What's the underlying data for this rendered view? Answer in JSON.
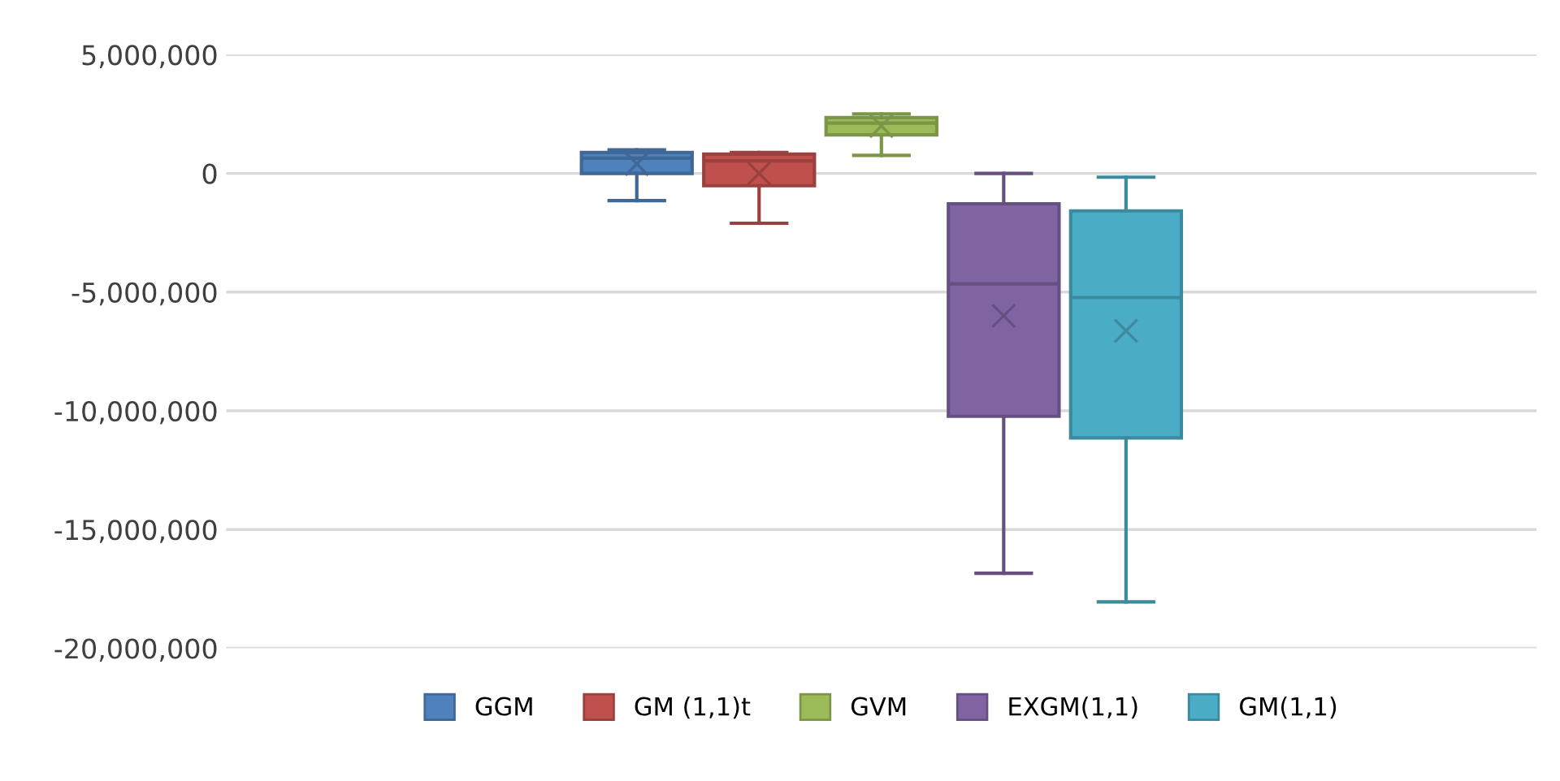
{
  "chart_data": {
    "type": "box",
    "categories": [
      null
    ],
    "series": [
      {
        "name": "GGM",
        "color": "#4f81bd",
        "boxes": [
          {
            "low": -1150000,
            "q1": 0,
            "median": 640000,
            "q3": 880000,
            "high": 990000,
            "mean": 400000
          }
        ]
      },
      {
        "name": "GM (1,1)t",
        "color": "#c0504d",
        "boxes": [
          {
            "low": -2100000,
            "q1": -520000,
            "median": 530000,
            "q3": 810000,
            "high": 880000,
            "mean": 0
          }
        ]
      },
      {
        "name": "GVM",
        "color": "#9bbb59",
        "boxes": [
          {
            "low": 760000,
            "q1": 1620000,
            "median": 2120000,
            "q3": 2350000,
            "high": 2500000,
            "mean": 2000000
          }
        ]
      },
      {
        "name": "EXGM(1,1)",
        "color": "#8064a2",
        "boxes": [
          {
            "low": -16840000,
            "q1": -10230000,
            "median": -4650000,
            "q3": -1280000,
            "high": 0,
            "mean": -6000000
          }
        ]
      },
      {
        "name": "GM(1,1)",
        "color": "#4bacc6",
        "boxes": [
          {
            "low": -18050000,
            "q1": -11140000,
            "median": -5230000,
            "q3": -1580000,
            "high": -160000,
            "mean": -6630000
          }
        ]
      }
    ],
    "ylim": [
      -20000000,
      5000000
    ],
    "yticks": [
      {
        "value": -20000000,
        "label": "-20,000,000"
      },
      {
        "value": -15000000,
        "label": "-15,000,000"
      },
      {
        "value": -10000000,
        "label": "-10,000,000"
      },
      {
        "value": -5000000,
        "label": "-5,000,000"
      },
      0,
      {
        "value": 5000000,
        "label": "5,000,000"
      }
    ],
    "grid": "y",
    "legend": "bottom",
    "tick_labels": "y"
  }
}
